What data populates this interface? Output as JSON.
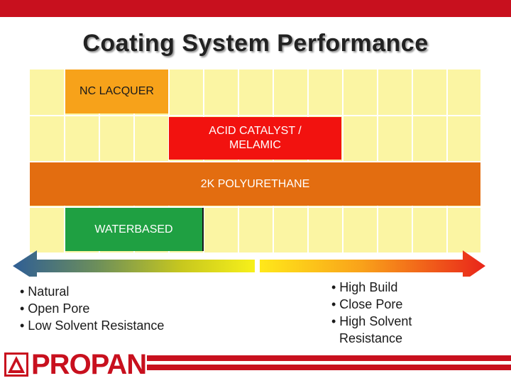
{
  "title": "Coating System Performance",
  "bars": {
    "nc_lacquer": "NC LACQUER",
    "acid_catalyst": "ACID CATALYST / MELAMIC",
    "polyurethane_2k": "2K POLYURETHANE",
    "waterbased": "WATERBASED"
  },
  "left_notes": [
    "• Natural",
    "• Open Pore",
    "• Low Solvent Resistance"
  ],
  "right_notes": [
    "• High Build",
    "• Close Pore",
    "• High Solvent Resistance"
  ],
  "logo_text": "PROPAN",
  "colors": {
    "brand_red": "#c8101e",
    "nc_lacquer": "#f7a21a",
    "acid_catalyst": "#f2120f",
    "polyurethane_2k": "#e36d10",
    "waterbased": "#1fa042",
    "grid_fill": "#fbf5a3"
  }
}
